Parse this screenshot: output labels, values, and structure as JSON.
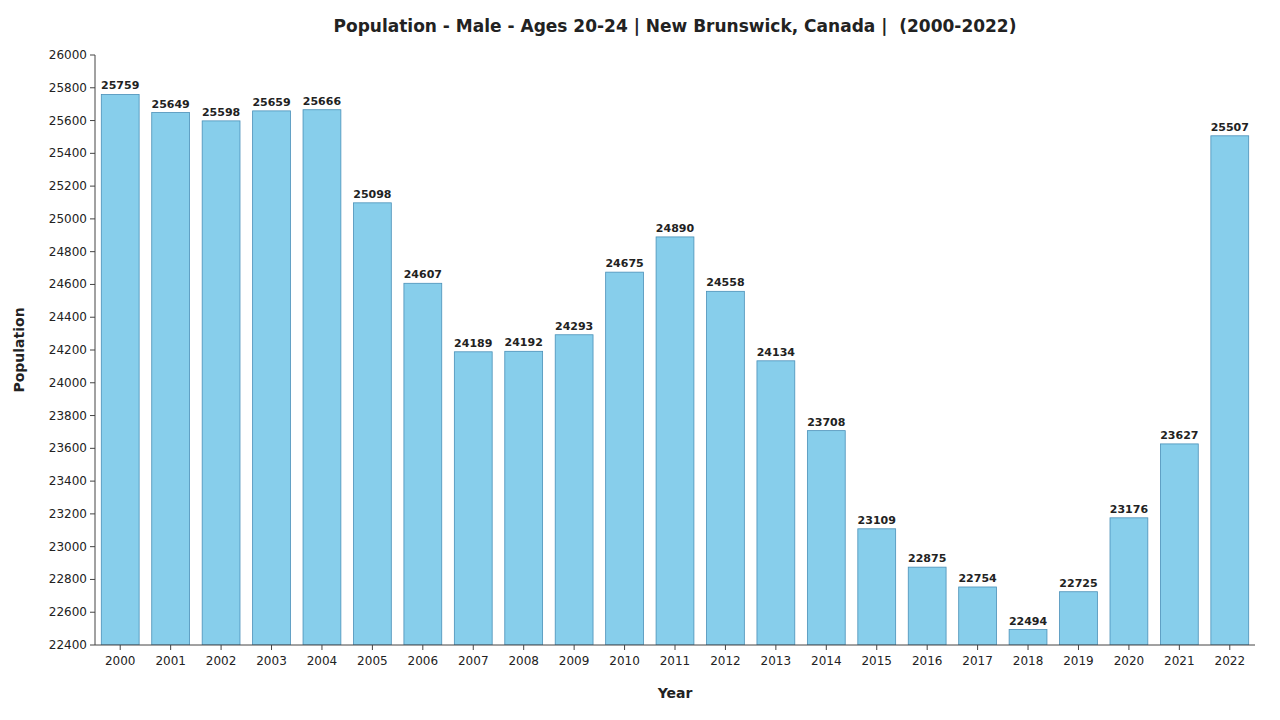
{
  "chart_data": {
    "type": "bar",
    "title": "Population - Male - Ages 20-24 | New Brunswick, Canada |  (2000-2022)",
    "xlabel": "Year",
    "ylabel": "Population",
    "categories": [
      "2000",
      "2001",
      "2002",
      "2003",
      "2004",
      "2005",
      "2006",
      "2007",
      "2008",
      "2009",
      "2010",
      "2011",
      "2012",
      "2013",
      "2014",
      "2015",
      "2016",
      "2017",
      "2018",
      "2019",
      "2020",
      "2021",
      "2022"
    ],
    "values": [
      25759,
      25649,
      25598,
      25659,
      25666,
      25098,
      24607,
      24189,
      24192,
      24293,
      24675,
      24890,
      24558,
      24134,
      23708,
      23109,
      22875,
      22754,
      22494,
      22725,
      23176,
      23627,
      25507
    ],
    "color": "#87CEEB",
    "ylim": [
      22400,
      26000
    ],
    "yticks": [
      22400,
      22600,
      22800,
      23000,
      23200,
      23400,
      23600,
      23800,
      24000,
      24200,
      24400,
      24600,
      24800,
      25000,
      25200,
      25400,
      25600,
      25800,
      26000
    ],
    "grid": false,
    "data_labels": true
  }
}
